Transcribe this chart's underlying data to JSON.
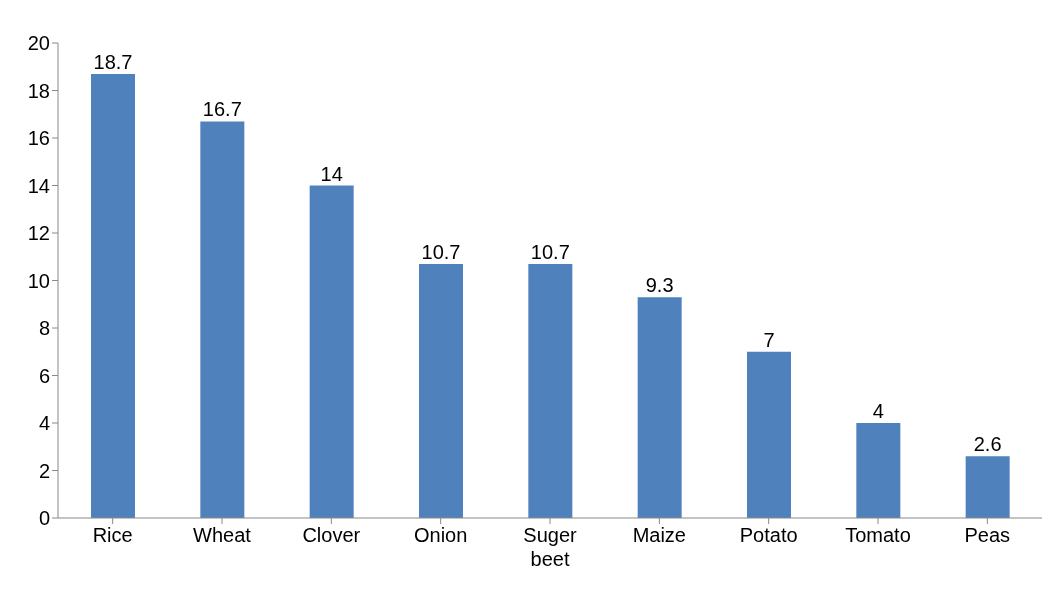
{
  "chart_data": {
    "type": "bar",
    "categories": [
      "Rice",
      "Wheat",
      "Clover",
      "Onion",
      "Suger beet",
      "Maize",
      "Potato",
      "Tomato",
      "Peas"
    ],
    "values": [
      18.7,
      16.7,
      14,
      10.7,
      10.7,
      9.3,
      7,
      4,
      2.6
    ],
    "color": "#4f81bd",
    "ylim": [
      0,
      20
    ],
    "yticks": [
      0,
      2,
      4,
      6,
      8,
      10,
      12,
      14,
      16,
      18,
      20
    ],
    "grid": false,
    "data_labels": true
  }
}
